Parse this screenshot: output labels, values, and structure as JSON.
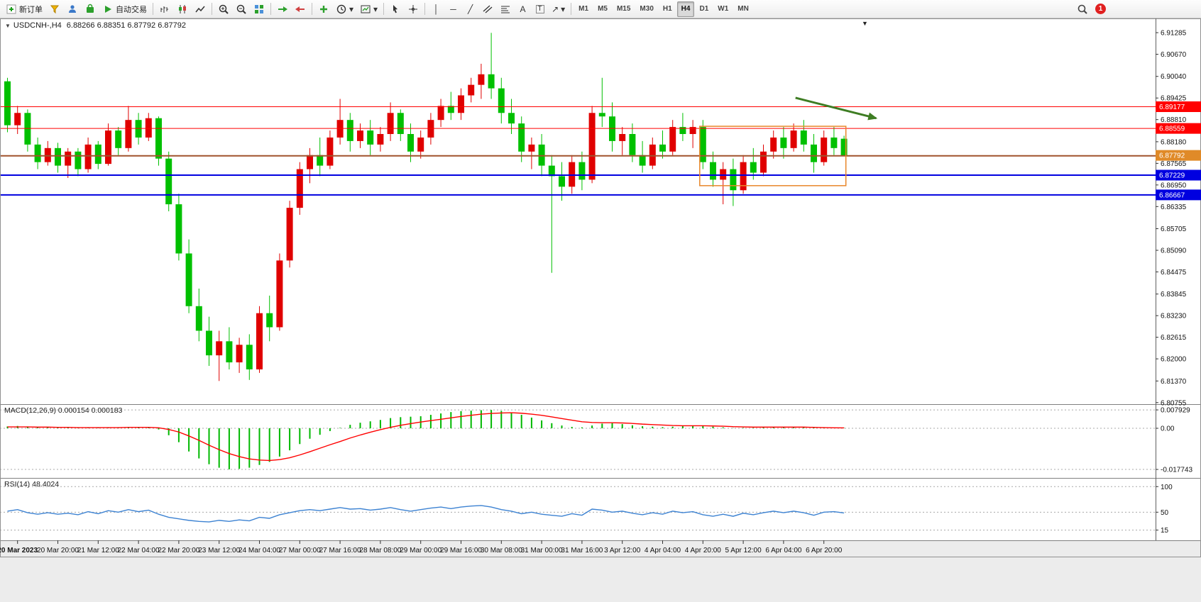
{
  "toolbar": {
    "buttons": {
      "new_order": "新订单",
      "autotrading": "自动交易"
    },
    "timeframes": [
      "M1",
      "M5",
      "M15",
      "M30",
      "H1",
      "H4",
      "D1",
      "W1",
      "MN"
    ],
    "active_timeframe": "H4",
    "notification_badge": "1"
  },
  "glyphs": {
    "triangle_down": "▼",
    "caret_down": "▾",
    "vline": "│",
    "hline": "─",
    "trendline": "╱",
    "text_tool": "A",
    "label_tool": "T",
    "arrow_ne": "↗"
  },
  "chart_window": {
    "symbol_title": "USDCNH-,H4",
    "ohlc": "6.88266 6.88351 6.87792 6.87792"
  },
  "chart_data": [
    {
      "type": "candlestick",
      "symbol": "USDCNH-",
      "timeframe": "H4",
      "last_ohlc": {
        "open": 6.88266,
        "high": 6.88351,
        "low": 6.87792,
        "close": 6.87792
      },
      "colors": {
        "up": "#e00000",
        "down": "#00c000"
      },
      "ylim": [
        6.8071,
        6.9169
      ],
      "y_axis": {
        "ticks": [
          "6.91285",
          "6.90670",
          "6.90040",
          "6.89425",
          "6.88810",
          "6.88180",
          "6.87565",
          "6.86950",
          "6.86335",
          "6.85705",
          "6.85090",
          "6.84475",
          "6.83845",
          "6.83230",
          "6.82615",
          "6.82000",
          "6.81370",
          "6.80755"
        ]
      },
      "x_axis": {
        "first_index": 1,
        "step": 4,
        "labels": [
          "20 Mar 2023",
          "20 Mar 20:00",
          "21 Mar 12:00",
          "22 Mar 04:00",
          "22 Mar 20:00",
          "23 Mar 12:00",
          "24 Mar 04:00",
          "27 Mar 00:00",
          "27 Mar 16:00",
          "28 Mar 08:00",
          "29 Mar 00:00",
          "29 Mar 16:00",
          "30 Mar 08:00",
          "31 Mar 00:00",
          "31 Mar 16:00",
          "3 Apr 12:00",
          "4 Apr 04:00",
          "4 Apr 20:00",
          "5 Apr 12:00",
          "6 Apr 04:00",
          "6 Apr 20:00"
        ]
      },
      "hlines": [
        {
          "price": 6.89177,
          "label": "6.89177",
          "color": "#ff0000",
          "width": 1
        },
        {
          "price": 6.88559,
          "label": "6.88559",
          "color": "#ff0000",
          "width": 1
        },
        {
          "price": 6.8778,
          "label": null,
          "color": "#a0522d",
          "width": 2
        },
        {
          "price": 6.87229,
          "label": "6.87229",
          "color": "#0000e0",
          "width": 2
        },
        {
          "price": 6.86667,
          "label": "6.86667",
          "color": "#0000e0",
          "width": 2
        }
      ],
      "current_price": {
        "value": 6.87792,
        "label": "6.87792",
        "color": "#e08a28"
      },
      "annotations": {
        "rectangle": {
          "index_start": 69,
          "index_end": 83.5,
          "price_top": 6.8862,
          "price_bottom": 6.8693,
          "color": "#e8872a"
        },
        "arrow": {
          "index_start": 78.5,
          "price_start": 6.8943,
          "index_end": 86.5,
          "price_end": 6.8885,
          "color": "#3e7d23"
        }
      },
      "candles": [
        [
          6.899,
          6.9,
          6.8845,
          6.8865
        ],
        [
          6.8865,
          6.892,
          6.884,
          6.89
        ],
        [
          6.89,
          6.891,
          6.879,
          6.881
        ],
        [
          6.881,
          6.883,
          6.874,
          6.876
        ],
        [
          6.876,
          6.882,
          6.875,
          6.88
        ],
        [
          6.88,
          6.8815,
          6.873,
          6.875
        ],
        [
          6.875,
          6.88,
          6.8715,
          6.879
        ],
        [
          6.879,
          6.88,
          6.872,
          6.874
        ],
        [
          6.874,
          6.883,
          6.873,
          6.881
        ],
        [
          6.881,
          6.882,
          6.874,
          6.8755
        ],
        [
          6.8755,
          6.887,
          6.875,
          6.885
        ],
        [
          6.885,
          6.886,
          6.878,
          6.88
        ],
        [
          6.88,
          6.892,
          6.879,
          6.888
        ],
        [
          6.888,
          6.89,
          6.881,
          6.883
        ],
        [
          6.883,
          6.89,
          6.882,
          6.8885
        ],
        [
          6.8885,
          6.889,
          6.875,
          6.877
        ],
        [
          6.877,
          6.879,
          6.862,
          6.864
        ],
        [
          6.864,
          6.867,
          6.848,
          6.85
        ],
        [
          6.85,
          6.854,
          6.833,
          6.835
        ],
        [
          6.835,
          6.84,
          6.825,
          6.828
        ],
        [
          6.828,
          6.832,
          6.818,
          6.821
        ],
        [
          6.821,
          6.828,
          6.8137,
          6.825
        ],
        [
          6.825,
          6.829,
          6.817,
          6.819
        ],
        [
          6.819,
          6.826,
          6.816,
          6.824
        ],
        [
          6.824,
          6.827,
          6.814,
          6.817
        ],
        [
          6.817,
          6.835,
          6.816,
          6.833
        ],
        [
          6.833,
          6.838,
          6.825,
          6.829
        ],
        [
          6.829,
          6.85,
          6.828,
          6.848
        ],
        [
          6.848,
          6.865,
          6.846,
          6.863
        ],
        [
          6.863,
          6.876,
          6.861,
          6.874
        ],
        [
          6.874,
          6.88,
          6.87,
          6.878
        ],
        [
          6.878,
          6.883,
          6.872,
          6.875
        ],
        [
          6.875,
          6.885,
          6.874,
          6.883
        ],
        [
          6.883,
          6.894,
          6.881,
          6.888
        ],
        [
          6.888,
          6.89,
          6.879,
          6.882
        ],
        [
          6.882,
          6.887,
          6.88,
          6.885
        ],
        [
          6.885,
          6.888,
          6.878,
          6.881
        ],
        [
          6.881,
          6.886,
          6.879,
          6.884
        ],
        [
          6.884,
          6.893,
          6.882,
          6.89
        ],
        [
          6.89,
          6.891,
          6.882,
          6.884
        ],
        [
          6.884,
          6.887,
          6.876,
          6.879
        ],
        [
          6.879,
          6.885,
          6.877,
          6.883
        ],
        [
          6.883,
          6.89,
          6.881,
          6.888
        ],
        [
          6.888,
          6.894,
          6.886,
          6.892
        ],
        [
          6.892,
          6.896,
          6.888,
          6.89
        ],
        [
          6.89,
          6.897,
          6.888,
          6.895
        ],
        [
          6.895,
          6.9,
          6.893,
          6.898
        ],
        [
          6.898,
          6.904,
          6.894,
          6.901
        ],
        [
          6.901,
          6.9128,
          6.894,
          6.897
        ],
        [
          6.897,
          6.9,
          6.887,
          6.89
        ],
        [
          6.89,
          6.894,
          6.884,
          6.887
        ],
        [
          6.887,
          6.889,
          6.876,
          6.879
        ],
        [
          6.879,
          6.883,
          6.874,
          6.881
        ],
        [
          6.881,
          6.884,
          6.872,
          6.875
        ],
        [
          6.875,
          6.878,
          6.8445,
          6.872
        ],
        [
          6.872,
          6.876,
          6.865,
          6.869
        ],
        [
          6.869,
          6.878,
          6.867,
          6.876
        ],
        [
          6.876,
          6.879,
          6.868,
          6.871
        ],
        [
          6.871,
          6.892,
          6.87,
          6.89
        ],
        [
          6.89,
          6.9,
          6.886,
          6.889
        ],
        [
          6.889,
          6.893,
          6.879,
          6.882
        ],
        [
          6.882,
          6.886,
          6.878,
          6.884
        ],
        [
          6.884,
          6.887,
          6.876,
          6.878
        ],
        [
          6.878,
          6.882,
          6.873,
          6.875
        ],
        [
          6.875,
          6.883,
          6.874,
          6.881
        ],
        [
          6.881,
          6.885,
          6.877,
          6.879
        ],
        [
          6.879,
          6.888,
          6.878,
          6.886
        ],
        [
          6.886,
          6.89,
          6.882,
          6.884
        ],
        [
          6.884,
          6.888,
          6.88,
          6.886
        ],
        [
          6.886,
          6.888,
          6.874,
          6.876
        ],
        [
          6.876,
          6.879,
          6.869,
          6.871
        ],
        [
          6.871,
          6.876,
          6.864,
          6.874
        ],
        [
          6.874,
          6.877,
          6.8635,
          6.868
        ],
        [
          6.868,
          6.878,
          6.867,
          6.876
        ],
        [
          6.876,
          6.88,
          6.871,
          6.873
        ],
        [
          6.873,
          6.881,
          6.872,
          6.879
        ],
        [
          6.879,
          6.885,
          6.877,
          6.883
        ],
        [
          6.883,
          6.886,
          6.877,
          6.88
        ],
        [
          6.88,
          6.887,
          6.879,
          6.885
        ],
        [
          6.885,
          6.888,
          6.879,
          6.881
        ],
        [
          6.881,
          6.884,
          6.873,
          6.876
        ],
        [
          6.876,
          6.885,
          6.875,
          6.883
        ],
        [
          6.883,
          6.886,
          6.878,
          6.88
        ],
        [
          6.88266,
          6.88351,
          6.87792,
          6.87792
        ]
      ]
    },
    {
      "type": "bar+line",
      "title": "MACD(12,26,9)",
      "current_values": "0.000154 0.000183",
      "histogram_color": "#00b800",
      "signal_color": "#ff0000",
      "ylim": [
        -0.0214,
        0.0104
      ],
      "y_ticks": [
        {
          "label": "0.007929",
          "value": 0.007929
        },
        {
          "label": "0.00",
          "value": 0
        },
        {
          "label": "-0.017743",
          "value": -0.017743
        }
      ],
      "histogram": [
        0.0008,
        0.001,
        0.0008,
        0.0006,
        0.0005,
        0.0004,
        0.0003,
        0.0002,
        0.0003,
        0.0002,
        0.0004,
        0.0003,
        0.0006,
        0.0006,
        0.0006,
        -0.0005,
        -0.003,
        -0.006,
        -0.01,
        -0.013,
        -0.0155,
        -0.017,
        -0.0177,
        -0.0175,
        -0.017,
        -0.0158,
        -0.0145,
        -0.0122,
        -0.0095,
        -0.0068,
        -0.0045,
        -0.0028,
        -0.0012,
        0.0002,
        0.0015,
        0.0024,
        0.003,
        0.0036,
        0.0044,
        0.0048,
        0.005,
        0.0052,
        0.0058,
        0.0064,
        0.007,
        0.0074,
        0.0076,
        0.0078,
        0.0079,
        0.0075,
        0.0068,
        0.0058,
        0.0046,
        0.0034,
        0.0022,
        0.0012,
        0.0006,
        0.0004,
        0.0012,
        0.002,
        0.0022,
        0.0018,
        0.0013,
        0.0009,
        0.0007,
        0.0005,
        0.0007,
        0.0009,
        0.0011,
        0.001,
        0.0007,
        0.0004,
        0.0001,
        0.0002,
        0.0002,
        0.0003,
        0.0005,
        0.0005,
        0.0006,
        0.0005,
        0.0003,
        0.0003,
        0.0002,
        0.000154
      ],
      "signal": [
        0.0006,
        0.0006,
        0.0006,
        0.0005,
        0.0005,
        0.0004,
        0.0004,
        0.0003,
        0.0003,
        0.0003,
        0.0003,
        0.0003,
        0.0004,
        0.0004,
        0.0004,
        0.0002,
        -0.0005,
        -0.0016,
        -0.0033,
        -0.0052,
        -0.0073,
        -0.0092,
        -0.0109,
        -0.0122,
        -0.0132,
        -0.0137,
        -0.0139,
        -0.0135,
        -0.0127,
        -0.0115,
        -0.0101,
        -0.0086,
        -0.0071,
        -0.0057,
        -0.0042,
        -0.0029,
        -0.0017,
        -0.0006,
        0.0004,
        0.0013,
        0.002,
        0.0027,
        0.0033,
        0.0039,
        0.0045,
        0.0051,
        0.0056,
        0.0061,
        0.0064,
        0.0066,
        0.0067,
        0.0065,
        0.0061,
        0.0056,
        0.0049,
        0.0042,
        0.0035,
        0.0028,
        0.0025,
        0.0024,
        0.0024,
        0.0023,
        0.0021,
        0.0018,
        0.0016,
        0.0014,
        0.0012,
        0.0011,
        0.0011,
        0.0011,
        0.001,
        0.0009,
        0.0007,
        0.0006,
        0.0005,
        0.0005,
        0.0005,
        0.0005,
        0.0005,
        0.0005,
        0.0004,
        0.0003,
        0.0002,
        0.000183
      ]
    },
    {
      "type": "line",
      "title": "RSI(14)",
      "current_value": "48.4024",
      "line_color": "#3c82d2",
      "ylim": [
        -5,
        117
      ],
      "y_ticks": [
        {
          "label": "100",
          "value": 100
        },
        {
          "label": "50",
          "value": 50
        },
        {
          "label": "15",
          "value": 15
        }
      ],
      "values": [
        52,
        55,
        49,
        46,
        49,
        46,
        48,
        45,
        51,
        47,
        53,
        50,
        55,
        51,
        54,
        46,
        40,
        37,
        34,
        32,
        31,
        34,
        32,
        35,
        33,
        40,
        38,
        45,
        49,
        53,
        55,
        53,
        56,
        59,
        56,
        57,
        54,
        56,
        59,
        55,
        52,
        55,
        58,
        60,
        57,
        60,
        62,
        63,
        60,
        55,
        52,
        47,
        50,
        46,
        44,
        42,
        47,
        44,
        56,
        54,
        50,
        52,
        48,
        45,
        49,
        46,
        52,
        49,
        51,
        45,
        42,
        46,
        42,
        48,
        45,
        49,
        52,
        49,
        52,
        49,
        44,
        50,
        51,
        48.4
      ]
    }
  ]
}
